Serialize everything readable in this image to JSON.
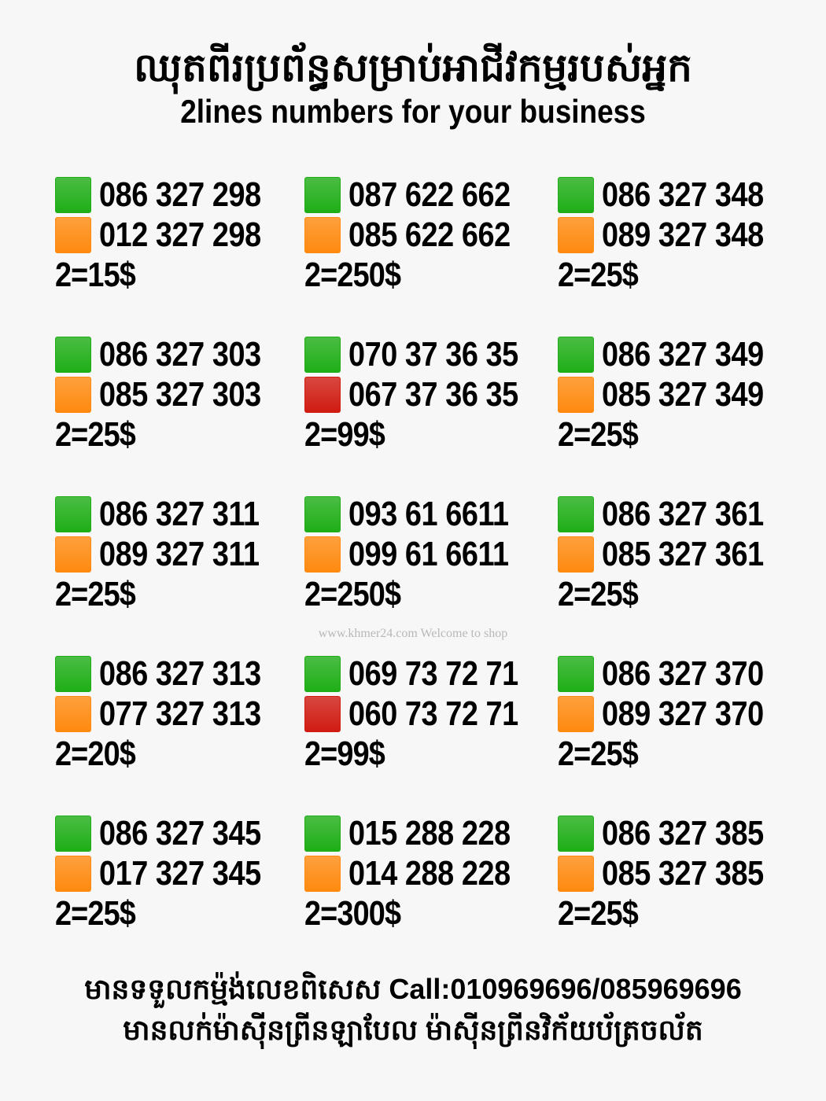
{
  "header": {
    "title_km": "ឈុតពីរប្រព័ន្ធសម្រាប់អាជីវកម្មរបស់អ្នក",
    "title_en": "2lines numbers for your business"
  },
  "colors": {
    "green": "#1fae17",
    "orange": "#ff8a0f",
    "red": "#d01c12"
  },
  "groups": [
    {
      "lines": [
        {
          "color": "green",
          "number": "086 327 298"
        },
        {
          "color": "orange",
          "number": "012 327 298"
        }
      ],
      "price": "2=15$"
    },
    {
      "lines": [
        {
          "color": "green",
          "number": "087 622 662"
        },
        {
          "color": "orange",
          "number": "085 622 662"
        }
      ],
      "price": "2=250$"
    },
    {
      "lines": [
        {
          "color": "green",
          "number": "086 327 348"
        },
        {
          "color": "orange",
          "number": "089 327 348"
        }
      ],
      "price": "2=25$"
    },
    {
      "lines": [
        {
          "color": "green",
          "number": "086 327 303"
        },
        {
          "color": "orange",
          "number": "085 327 303"
        }
      ],
      "price": "2=25$"
    },
    {
      "lines": [
        {
          "color": "green",
          "number": "070 37 36 35"
        },
        {
          "color": "red",
          "number": "067 37 36 35"
        }
      ],
      "price": "2=99$"
    },
    {
      "lines": [
        {
          "color": "green",
          "number": "086 327 349"
        },
        {
          "color": "orange",
          "number": "085 327 349"
        }
      ],
      "price": "2=25$"
    },
    {
      "lines": [
        {
          "color": "green",
          "number": "086 327 311"
        },
        {
          "color": "orange",
          "number": "089 327 311"
        }
      ],
      "price": "2=25$"
    },
    {
      "lines": [
        {
          "color": "green",
          "number": "093 61 6611"
        },
        {
          "color": "orange",
          "number": "099 61 6611"
        }
      ],
      "price": "2=250$"
    },
    {
      "lines": [
        {
          "color": "green",
          "number": "086 327 361"
        },
        {
          "color": "orange",
          "number": "085 327 361"
        }
      ],
      "price": "2=25$"
    },
    {
      "lines": [
        {
          "color": "green",
          "number": "086 327 313"
        },
        {
          "color": "orange",
          "number": "077 327 313"
        }
      ],
      "price": "2=20$"
    },
    {
      "lines": [
        {
          "color": "green",
          "number": "069 73 72 71"
        },
        {
          "color": "red",
          "number": "060 73 72 71"
        }
      ],
      "price": "2=99$"
    },
    {
      "lines": [
        {
          "color": "green",
          "number": "086 327 370"
        },
        {
          "color": "orange",
          "number": "089 327 370"
        }
      ],
      "price": "2=25$"
    },
    {
      "lines": [
        {
          "color": "green",
          "number": "086 327 345"
        },
        {
          "color": "orange",
          "number": "017 327 345"
        }
      ],
      "price": "2=25$"
    },
    {
      "lines": [
        {
          "color": "green",
          "number": "015 288 228"
        },
        {
          "color": "orange",
          "number": "014 288 228"
        }
      ],
      "price": "2=300$"
    },
    {
      "lines": [
        {
          "color": "green",
          "number": "086 327 385"
        },
        {
          "color": "orange",
          "number": "085 327 385"
        }
      ],
      "price": "2=25$"
    }
  ],
  "watermark": "www.khmer24.com Welcome to shop",
  "footer": {
    "line1": "មានទទួលកម្ម៉ង់លេខពិសេស Call:010969696/085969696",
    "line2": "មានលក់ម៉ាស៊ីនព្រីនឡាបែល ម៉ាស៊ីនព្រីនវិក័យប័ត្រចល័ត"
  }
}
